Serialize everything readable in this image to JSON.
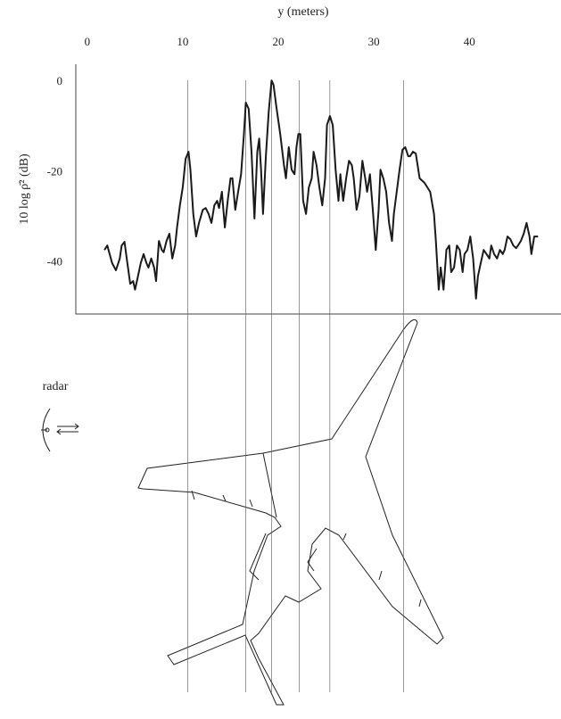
{
  "chart_data": {
    "type": "line",
    "xlabel": "y (meters)",
    "ylabel": "10 log ρ̄² (dB)",
    "annotation": "radar",
    "x": [
      1.8,
      2.1,
      2.6,
      3.0,
      3.4,
      3.6,
      3.9,
      4.2,
      4.5,
      4.8,
      5.0,
      5.3,
      5.6,
      5.9,
      6.2,
      6.4,
      6.7,
      7.0,
      7.2,
      7.5,
      7.8,
      8.0,
      8.3,
      8.6,
      8.9,
      9.2,
      9.4,
      9.7,
      10.0,
      10.3,
      10.6,
      10.8,
      11.1,
      11.4,
      11.7,
      12.1,
      12.4,
      12.7,
      13.0,
      13.3,
      13.6,
      13.8,
      14.1,
      14.4,
      14.7,
      15.0,
      15.2,
      15.5,
      15.8,
      16.1,
      16.4,
      16.6,
      16.9,
      17.2,
      17.5,
      17.8,
      18.0,
      18.2,
      18.4,
      18.7,
      19.0,
      19.3,
      19.5,
      19.8,
      20.2,
      20.6,
      20.8,
      21.1,
      21.4,
      21.7,
      21.9,
      22.1,
      22.3,
      22.6,
      22.9,
      23.2,
      23.5,
      23.7,
      24.0,
      24.3,
      24.6,
      24.9,
      25.1,
      25.4,
      25.7,
      26.0,
      26.3,
      26.5,
      26.8,
      27.1,
      27.4,
      27.7,
      27.9,
      28.2,
      28.5,
      28.8,
      29.1,
      29.3,
      29.6,
      29.9,
      30.2,
      30.5,
      30.7,
      31.0,
      31.3,
      31.6,
      31.9,
      32.1,
      32.4,
      32.7,
      33.0,
      33.3,
      33.6,
      33.8,
      34.1,
      34.4,
      34.8,
      35.3,
      35.9,
      36.3,
      36.5,
      36.8,
      37.0,
      37.3,
      37.6,
      37.9,
      38.1,
      38.4,
      38.7,
      39.0,
      39.3,
      39.5,
      39.8,
      40.1,
      40.4,
      40.7,
      40.9,
      41.2,
      41.5,
      41.8,
      42.1,
      42.3,
      42.6,
      42.9,
      43.2,
      43.5,
      43.7,
      44.0,
      44.3,
      44.6,
      44.9,
      45.1,
      45.4,
      45.7,
      46.0,
      46.3,
      46.5,
      46.8,
      47.2
    ],
    "series": [
      {
        "color": "#1a1a1a",
        "values": [
          -37.2,
          -36.2,
          -40.1,
          -41.7,
          -39.1,
          -36.2,
          -35.4,
          -40.1,
          -44.7,
          -44.1,
          -46.0,
          -43.1,
          -40.1,
          -38.1,
          -40.1,
          -41.1,
          -39.1,
          -41.1,
          -44.1,
          -35.2,
          -37.2,
          -37.7,
          -35.2,
          -33.6,
          -39.1,
          -36.2,
          -32.2,
          -27.3,
          -23.3,
          -17.0,
          -15.4,
          -19.4,
          -29.2,
          -34.2,
          -31.2,
          -28.3,
          -27.9,
          -29.2,
          -31.2,
          -27.3,
          -26.3,
          -27.9,
          -24.3,
          -32.2,
          -26.3,
          -21.3,
          -21.3,
          -28.3,
          -24.3,
          -20.4,
          -11.5,
          -4.5,
          -5.9,
          -15.4,
          -30.2,
          -15.4,
          -12.5,
          -19.4,
          -29.2,
          -16.4,
          -6.5,
          0.4,
          -0.6,
          -5.5,
          -11.5,
          -18.4,
          -21.3,
          -14.4,
          -19.4,
          -20.4,
          -14.4,
          -11.5,
          -11.5,
          -26.3,
          -29.2,
          -23.3,
          -21.3,
          -15.4,
          -18.4,
          -23.3,
          -27.3,
          -21.3,
          -9.5,
          -7.5,
          -9.5,
          -19.4,
          -26.3,
          -20.4,
          -26.3,
          -21.3,
          -17.4,
          -18.4,
          -21.3,
          -28.3,
          -25.3,
          -17.4,
          -21.3,
          -24.3,
          -20.4,
          -28.3,
          -37.2,
          -28.3,
          -19.4,
          -21.3,
          -24.3,
          -31.2,
          -35.2,
          -29.2,
          -24.3,
          -19.4,
          -15.0,
          -14.4,
          -16.4,
          -16.4,
          -15.4,
          -15.8,
          -21.3,
          -22.3,
          -24.3,
          -29.2,
          -35.2,
          -46.0,
          -41.1,
          -46.0,
          -37.2,
          -36.2,
          -42.1,
          -41.1,
          -36.2,
          -37.2,
          -42.1,
          -38.1,
          -37.2,
          -34.2,
          -39.1,
          -48.0,
          -43.1,
          -40.1,
          -37.2,
          -38.1,
          -39.1,
          -36.2,
          -38.1,
          -39.1,
          -37.2,
          -38.1,
          -37.2,
          -34.2,
          -34.8,
          -36.2,
          -36.8,
          -36.2,
          -35.2,
          -33.6,
          -31.2,
          -34.2,
          -38.1,
          -34.2,
          -34.2
        ]
      }
    ],
    "reference_lines_x": [
      10.5,
      16.6,
      19.3,
      22.2,
      25.4,
      33.1
    ],
    "xlim": [
      -1.2,
      49.6
    ],
    "ylim": [
      -51.4,
      4
    ],
    "xticks": [
      0,
      10,
      20,
      30,
      40
    ],
    "yticks": [
      0,
      -20,
      -40
    ]
  }
}
